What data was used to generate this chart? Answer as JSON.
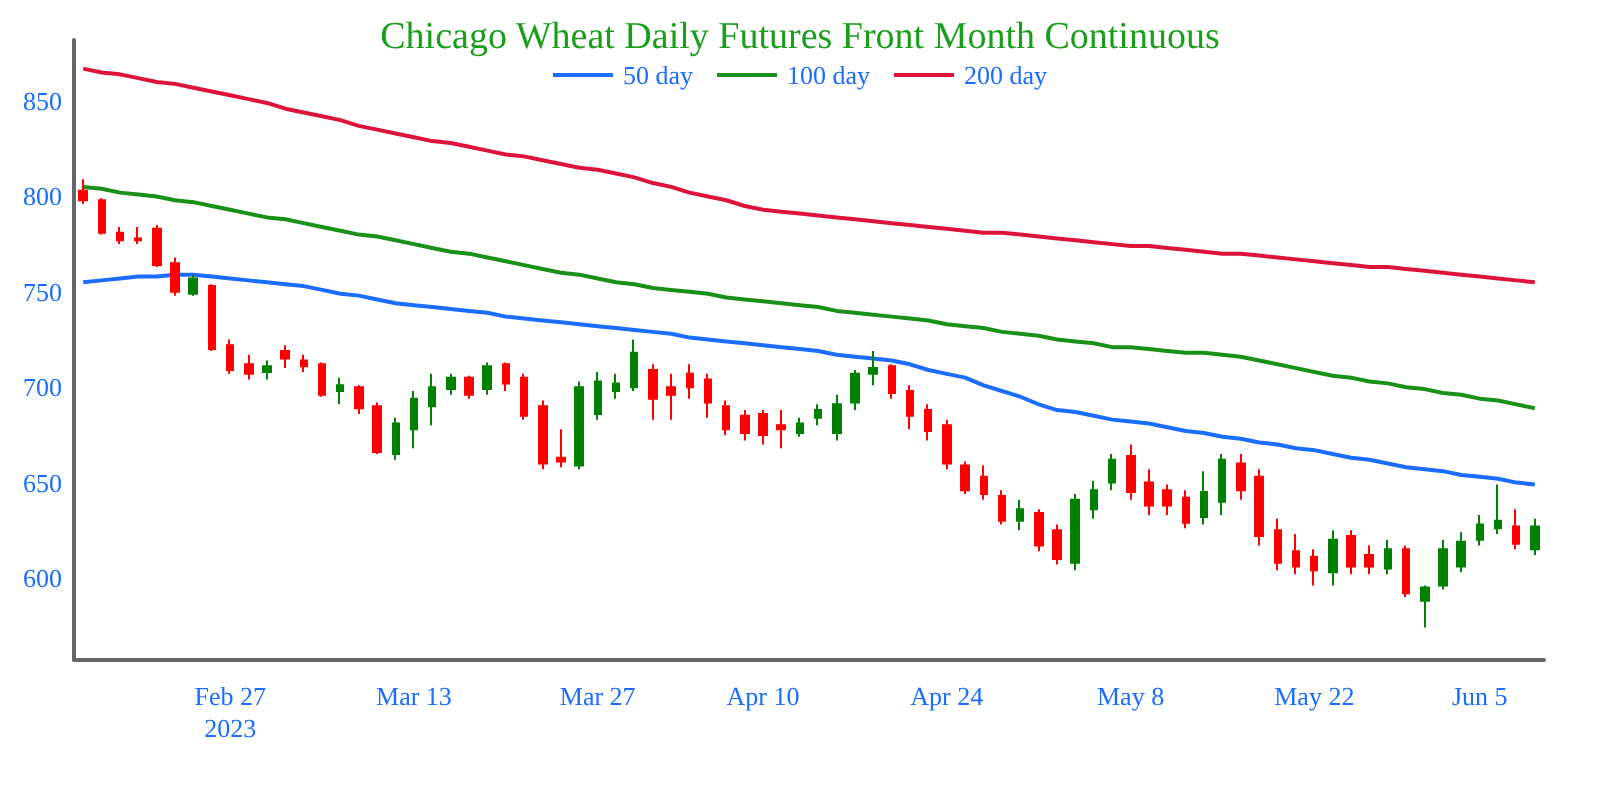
{
  "chart_data": {
    "type": "candlestick",
    "title": "Chicago Wheat Daily Futures Front Month Continuous",
    "categories": [
      null,
      null,
      null,
      null,
      null,
      null,
      null,
      null,
      "Feb 27\n2023",
      null,
      null,
      null,
      null,
      null,
      null,
      null,
      null,
      null,
      "Mar 13",
      null,
      null,
      null,
      null,
      null,
      null,
      null,
      null,
      null,
      "Mar 27",
      null,
      null,
      null,
      null,
      null,
      null,
      null,
      null,
      "Apr 10",
      null,
      null,
      null,
      null,
      null,
      null,
      null,
      null,
      null,
      "Apr 24",
      null,
      null,
      null,
      null,
      null,
      null,
      null,
      null,
      null,
      "May 8",
      null,
      null,
      null,
      null,
      null,
      null,
      null,
      null,
      null,
      "May 22",
      null,
      null,
      null,
      null,
      null,
      null,
      null,
      null,
      "Jun 5",
      null,
      null,
      null
    ],
    "ohlc": [
      [
        803,
        809,
        796,
        798
      ],
      [
        798,
        799,
        780,
        781
      ],
      [
        781,
        784,
        775,
        777
      ],
      [
        778,
        784,
        775,
        777
      ],
      [
        783,
        785,
        763,
        764
      ],
      [
        765,
        768,
        748,
        750
      ],
      [
        749,
        759,
        748,
        757
      ],
      [
        753,
        754,
        719,
        720
      ],
      [
        722,
        725,
        707,
        709
      ],
      [
        712,
        717,
        704,
        707
      ],
      [
        708,
        714,
        704,
        711
      ],
      [
        719,
        722,
        710,
        715
      ],
      [
        714,
        717,
        708,
        711
      ],
      [
        712,
        713,
        695,
        696
      ],
      [
        698,
        705,
        691,
        701
      ],
      [
        700,
        701,
        686,
        689
      ],
      [
        690,
        692,
        665,
        666
      ],
      [
        665,
        684,
        662,
        681
      ],
      [
        678,
        698,
        668,
        694
      ],
      [
        690,
        707,
        680,
        700
      ],
      [
        699,
        707,
        696,
        705
      ],
      [
        705,
        706,
        694,
        696
      ],
      [
        699,
        713,
        696,
        711
      ],
      [
        712,
        713,
        698,
        702
      ],
      [
        705,
        707,
        683,
        685
      ],
      [
        690,
        693,
        657,
        660
      ],
      [
        663,
        678,
        658,
        661
      ],
      [
        659,
        703,
        657,
        700
      ],
      [
        686,
        708,
        683,
        703
      ],
      [
        698,
        707,
        694,
        702
      ],
      [
        700,
        725,
        698,
        718
      ],
      [
        709,
        712,
        683,
        694
      ],
      [
        700,
        707,
        683,
        696
      ],
      [
        707,
        712,
        694,
        700
      ],
      [
        704,
        707,
        684,
        692
      ],
      [
        690,
        693,
        675,
        678
      ],
      [
        685,
        688,
        672,
        676
      ],
      [
        686,
        688,
        670,
        675
      ],
      [
        680,
        688,
        668,
        678
      ],
      [
        676,
        684,
        674,
        681
      ],
      [
        684,
        691,
        680,
        688
      ],
      [
        676,
        696,
        672,
        691
      ],
      [
        692,
        709,
        688,
        707
      ],
      [
        707,
        719,
        701,
        710
      ],
      [
        711,
        712,
        694,
        697
      ],
      [
        698,
        701,
        678,
        685
      ],
      [
        688,
        691,
        672,
        677
      ],
      [
        680,
        683,
        657,
        660
      ],
      [
        659,
        661,
        644,
        646
      ],
      [
        653,
        659,
        641,
        644
      ],
      [
        643,
        646,
        628,
        630
      ],
      [
        630,
        641,
        625,
        636
      ],
      [
        634,
        636,
        614,
        617
      ],
      [
        625,
        628,
        607,
        610
      ],
      [
        608,
        644,
        604,
        641
      ],
      [
        636,
        651,
        631,
        646
      ],
      [
        650,
        665,
        646,
        662
      ],
      [
        664,
        670,
        641,
        645
      ],
      [
        650,
        657,
        633,
        638
      ],
      [
        646,
        649,
        633,
        638
      ],
      [
        642,
        646,
        626,
        629
      ],
      [
        632,
        656,
        628,
        645
      ],
      [
        640,
        665,
        633,
        662
      ],
      [
        660,
        665,
        641,
        646
      ],
      [
        653,
        657,
        617,
        622
      ],
      [
        625,
        631,
        604,
        608
      ],
      [
        614,
        623,
        602,
        606
      ],
      [
        611,
        615,
        596,
        604
      ],
      [
        603,
        625,
        596,
        620
      ],
      [
        622,
        625,
        602,
        606
      ],
      [
        612,
        617,
        602,
        606
      ],
      [
        605,
        620,
        602,
        615
      ],
      [
        615,
        617,
        590,
        592
      ],
      [
        588,
        596,
        574,
        595
      ],
      [
        596,
        620,
        594,
        615
      ],
      [
        606,
        624,
        603,
        619
      ],
      [
        620,
        633,
        617,
        628
      ],
      [
        626,
        649,
        623,
        630
      ],
      [
        627,
        636,
        615,
        618
      ],
      [
        615,
        631,
        612,
        627
      ]
    ],
    "series": [
      {
        "name": "50 day",
        "type": "line",
        "color": "#1a6dff",
        "values": [
          755,
          756,
          757,
          758,
          758,
          759,
          759,
          758,
          757,
          756,
          755,
          754,
          753,
          751,
          749,
          748,
          746,
          744,
          743,
          742,
          741,
          740,
          739,
          737,
          736,
          735,
          734,
          733,
          732,
          731,
          730,
          729,
          728,
          726,
          725,
          724,
          723,
          722,
          721,
          720,
          719,
          717,
          716,
          715,
          714,
          712,
          709,
          707,
          705,
          701,
          698,
          695,
          691,
          688,
          687,
          685,
          683,
          682,
          681,
          679,
          677,
          676,
          674,
          673,
          671,
          670,
          668,
          667,
          665,
          663,
          662,
          660,
          658,
          657,
          656,
          654,
          653,
          652,
          650,
          649
        ]
      },
      {
        "name": "100 day",
        "type": "line",
        "color": "#199119",
        "values": [
          805,
          804,
          802,
          801,
          800,
          798,
          797,
          795,
          793,
          791,
          789,
          788,
          786,
          784,
          782,
          780,
          779,
          777,
          775,
          773,
          771,
          770,
          768,
          766,
          764,
          762,
          760,
          759,
          757,
          755,
          754,
          752,
          751,
          750,
          749,
          747,
          746,
          745,
          744,
          743,
          742,
          740,
          739,
          738,
          737,
          736,
          735,
          733,
          732,
          731,
          729,
          728,
          727,
          725,
          724,
          723,
          721,
          721,
          720,
          719,
          718,
          718,
          717,
          716,
          714,
          712,
          710,
          708,
          706,
          705,
          703,
          702,
          700,
          699,
          697,
          696,
          694,
          693,
          691,
          689
        ]
      },
      {
        "name": "200 day",
        "type": "line",
        "color": "#dc143c",
        "values": [
          867,
          865,
          864,
          862,
          860,
          859,
          857,
          855,
          853,
          851,
          849,
          846,
          844,
          842,
          840,
          837,
          835,
          833,
          831,
          829,
          828,
          826,
          824,
          822,
          821,
          819,
          817,
          815,
          814,
          812,
          810,
          807,
          805,
          802,
          800,
          798,
          795,
          793,
          792,
          791,
          790,
          789,
          788,
          787,
          786,
          785,
          784,
          783,
          782,
          781,
          781,
          780,
          779,
          778,
          777,
          776,
          775,
          774,
          774,
          773,
          772,
          771,
          770,
          770,
          769,
          768,
          767,
          766,
          765,
          764,
          763,
          763,
          762,
          761,
          760,
          759,
          758,
          757,
          756,
          755
        ]
      }
    ],
    "ylim": [
      557,
      882
    ],
    "yticks": [
      600,
      650,
      700,
      750,
      800,
      850
    ],
    "grid": false,
    "legend": "top"
  }
}
